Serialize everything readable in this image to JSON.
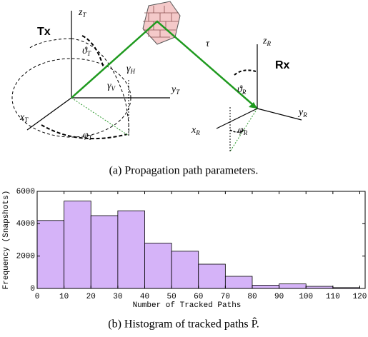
{
  "diagram": {
    "tx": "Tx",
    "rx": "Rx",
    "tau": "τ",
    "z_t": {
      "main": "z",
      "sub": "T"
    },
    "y_t": {
      "main": "y",
      "sub": "T"
    },
    "x_t": {
      "main": "x",
      "sub": "T"
    },
    "theta_t": {
      "main": "ϑ",
      "sub": "T"
    },
    "gamma_h": {
      "main": "γ",
      "sub": "H"
    },
    "gamma_v": {
      "main": "γ",
      "sub": "V"
    },
    "phi_t": {
      "main": "φ",
      "sub": "T"
    },
    "z_r": {
      "main": "z",
      "sub": "R"
    },
    "y_r": {
      "main": "y",
      "sub": "R"
    },
    "x_r": {
      "main": "x",
      "sub": "R"
    },
    "theta_r": {
      "main": "ϑ",
      "sub": "R"
    },
    "phi_r": {
      "main": "φ",
      "sub": "R"
    },
    "caption": "(a) Propagation path parameters."
  },
  "chart_data": {
    "type": "histogram",
    "bins": [
      0,
      10,
      20,
      30,
      40,
      50,
      60,
      70,
      80,
      90,
      100,
      110,
      120
    ],
    "values": [
      4200,
      5400,
      4500,
      4800,
      2800,
      2300,
      1500,
      750,
      200,
      280,
      130,
      50
    ],
    "color": "#d5b3f8",
    "xlim": [
      0,
      122
    ],
    "xticks": [
      0,
      10,
      20,
      30,
      40,
      50,
      60,
      70,
      80,
      90,
      100,
      110,
      120
    ],
    "ylim": [
      0,
      6000
    ],
    "yticks": [
      0,
      2000,
      4000,
      6000
    ],
    "xlabel": "Number of Tracked Paths",
    "ylabel": "Frequency (Snapshots)",
    "caption": "(b) Histogram of tracked paths P̂."
  }
}
